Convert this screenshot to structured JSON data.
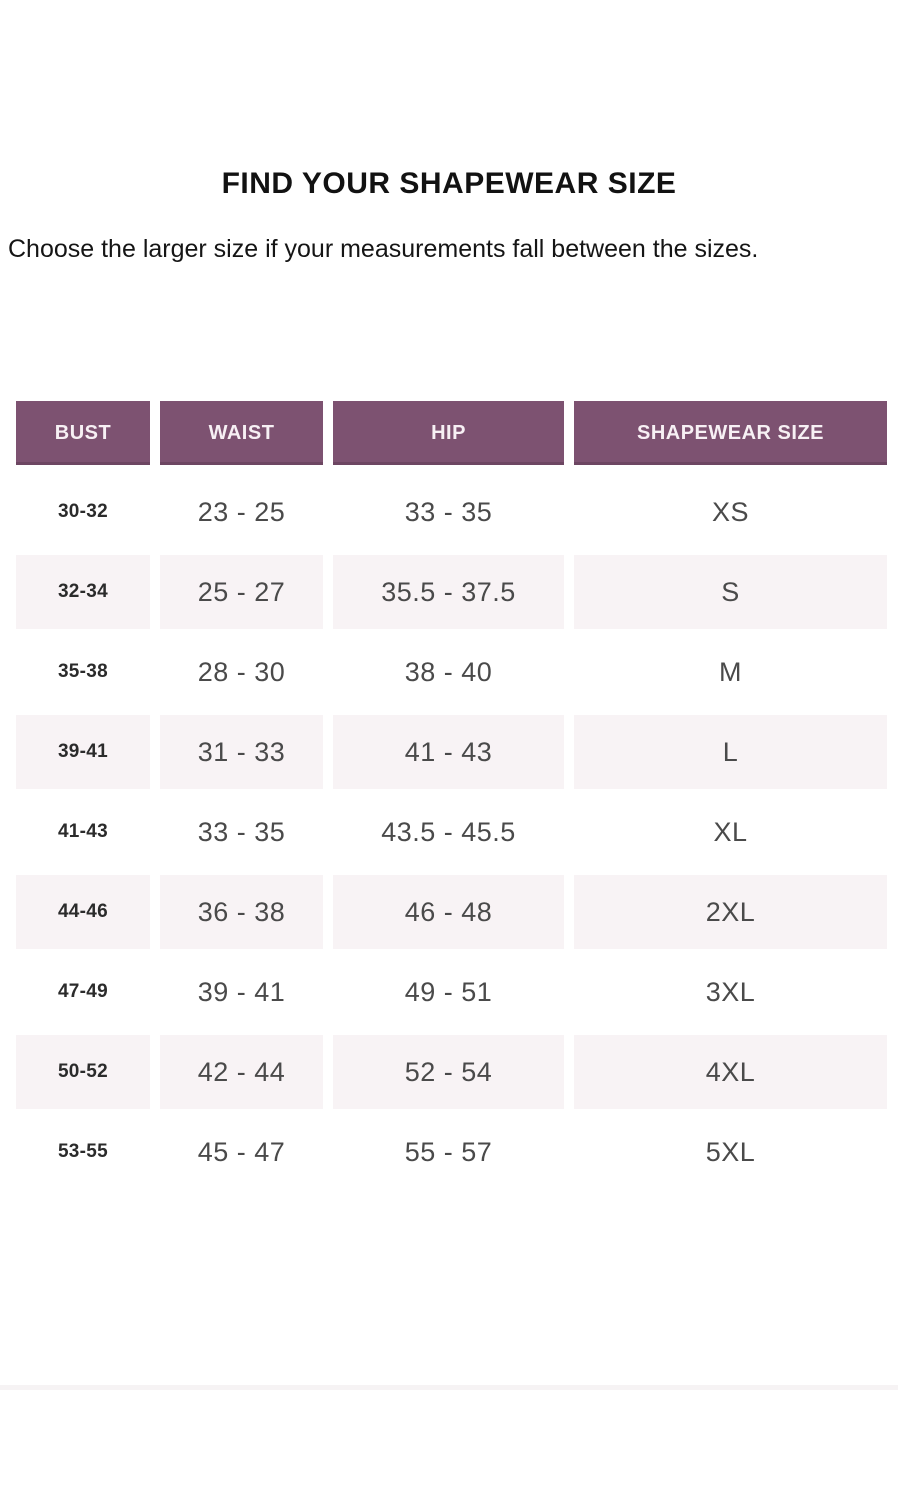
{
  "header": {
    "title": "FIND YOUR SHAPEWEAR SIZE",
    "subtitle": "Choose the larger size if your measurements fall between the sizes."
  },
  "table": {
    "columns": [
      "BUST",
      "WAIST",
      "HIP",
      "SHAPEWEAR SIZE"
    ],
    "rows": [
      {
        "bust": "30-32",
        "waist": "23 - 25",
        "hip": "33 - 35",
        "size": "XS"
      },
      {
        "bust": "32-34",
        "waist": "25 - 27",
        "hip": "35.5 - 37.5",
        "size": "S"
      },
      {
        "bust": "35-38",
        "waist": "28 - 30",
        "hip": "38 - 40",
        "size": "M"
      },
      {
        "bust": "39-41",
        "waist": "31 - 33",
        "hip": "41 - 43",
        "size": "L"
      },
      {
        "bust": "41-43",
        "waist": "33 - 35",
        "hip": "43.5 - 45.5",
        "size": "XL"
      },
      {
        "bust": "44-46",
        "waist": "36 - 38",
        "hip": "46 - 48",
        "size": "2XL"
      },
      {
        "bust": "47-49",
        "waist": "39 - 41",
        "hip": "49 - 51",
        "size": "3XL"
      },
      {
        "bust": "50-52",
        "waist": "42 - 44",
        "hip": "52 - 54",
        "size": "4XL"
      },
      {
        "bust": "53-55",
        "waist": "45 - 47",
        "hip": "55 - 57",
        "size": "5XL"
      }
    ]
  },
  "colors": {
    "header_bg": "#7d5271",
    "header_text": "#f7f0f4",
    "stripe_bg": "#f8f3f5",
    "body_text": "#4a4a4a",
    "bust_text": "#2b2b2b"
  }
}
